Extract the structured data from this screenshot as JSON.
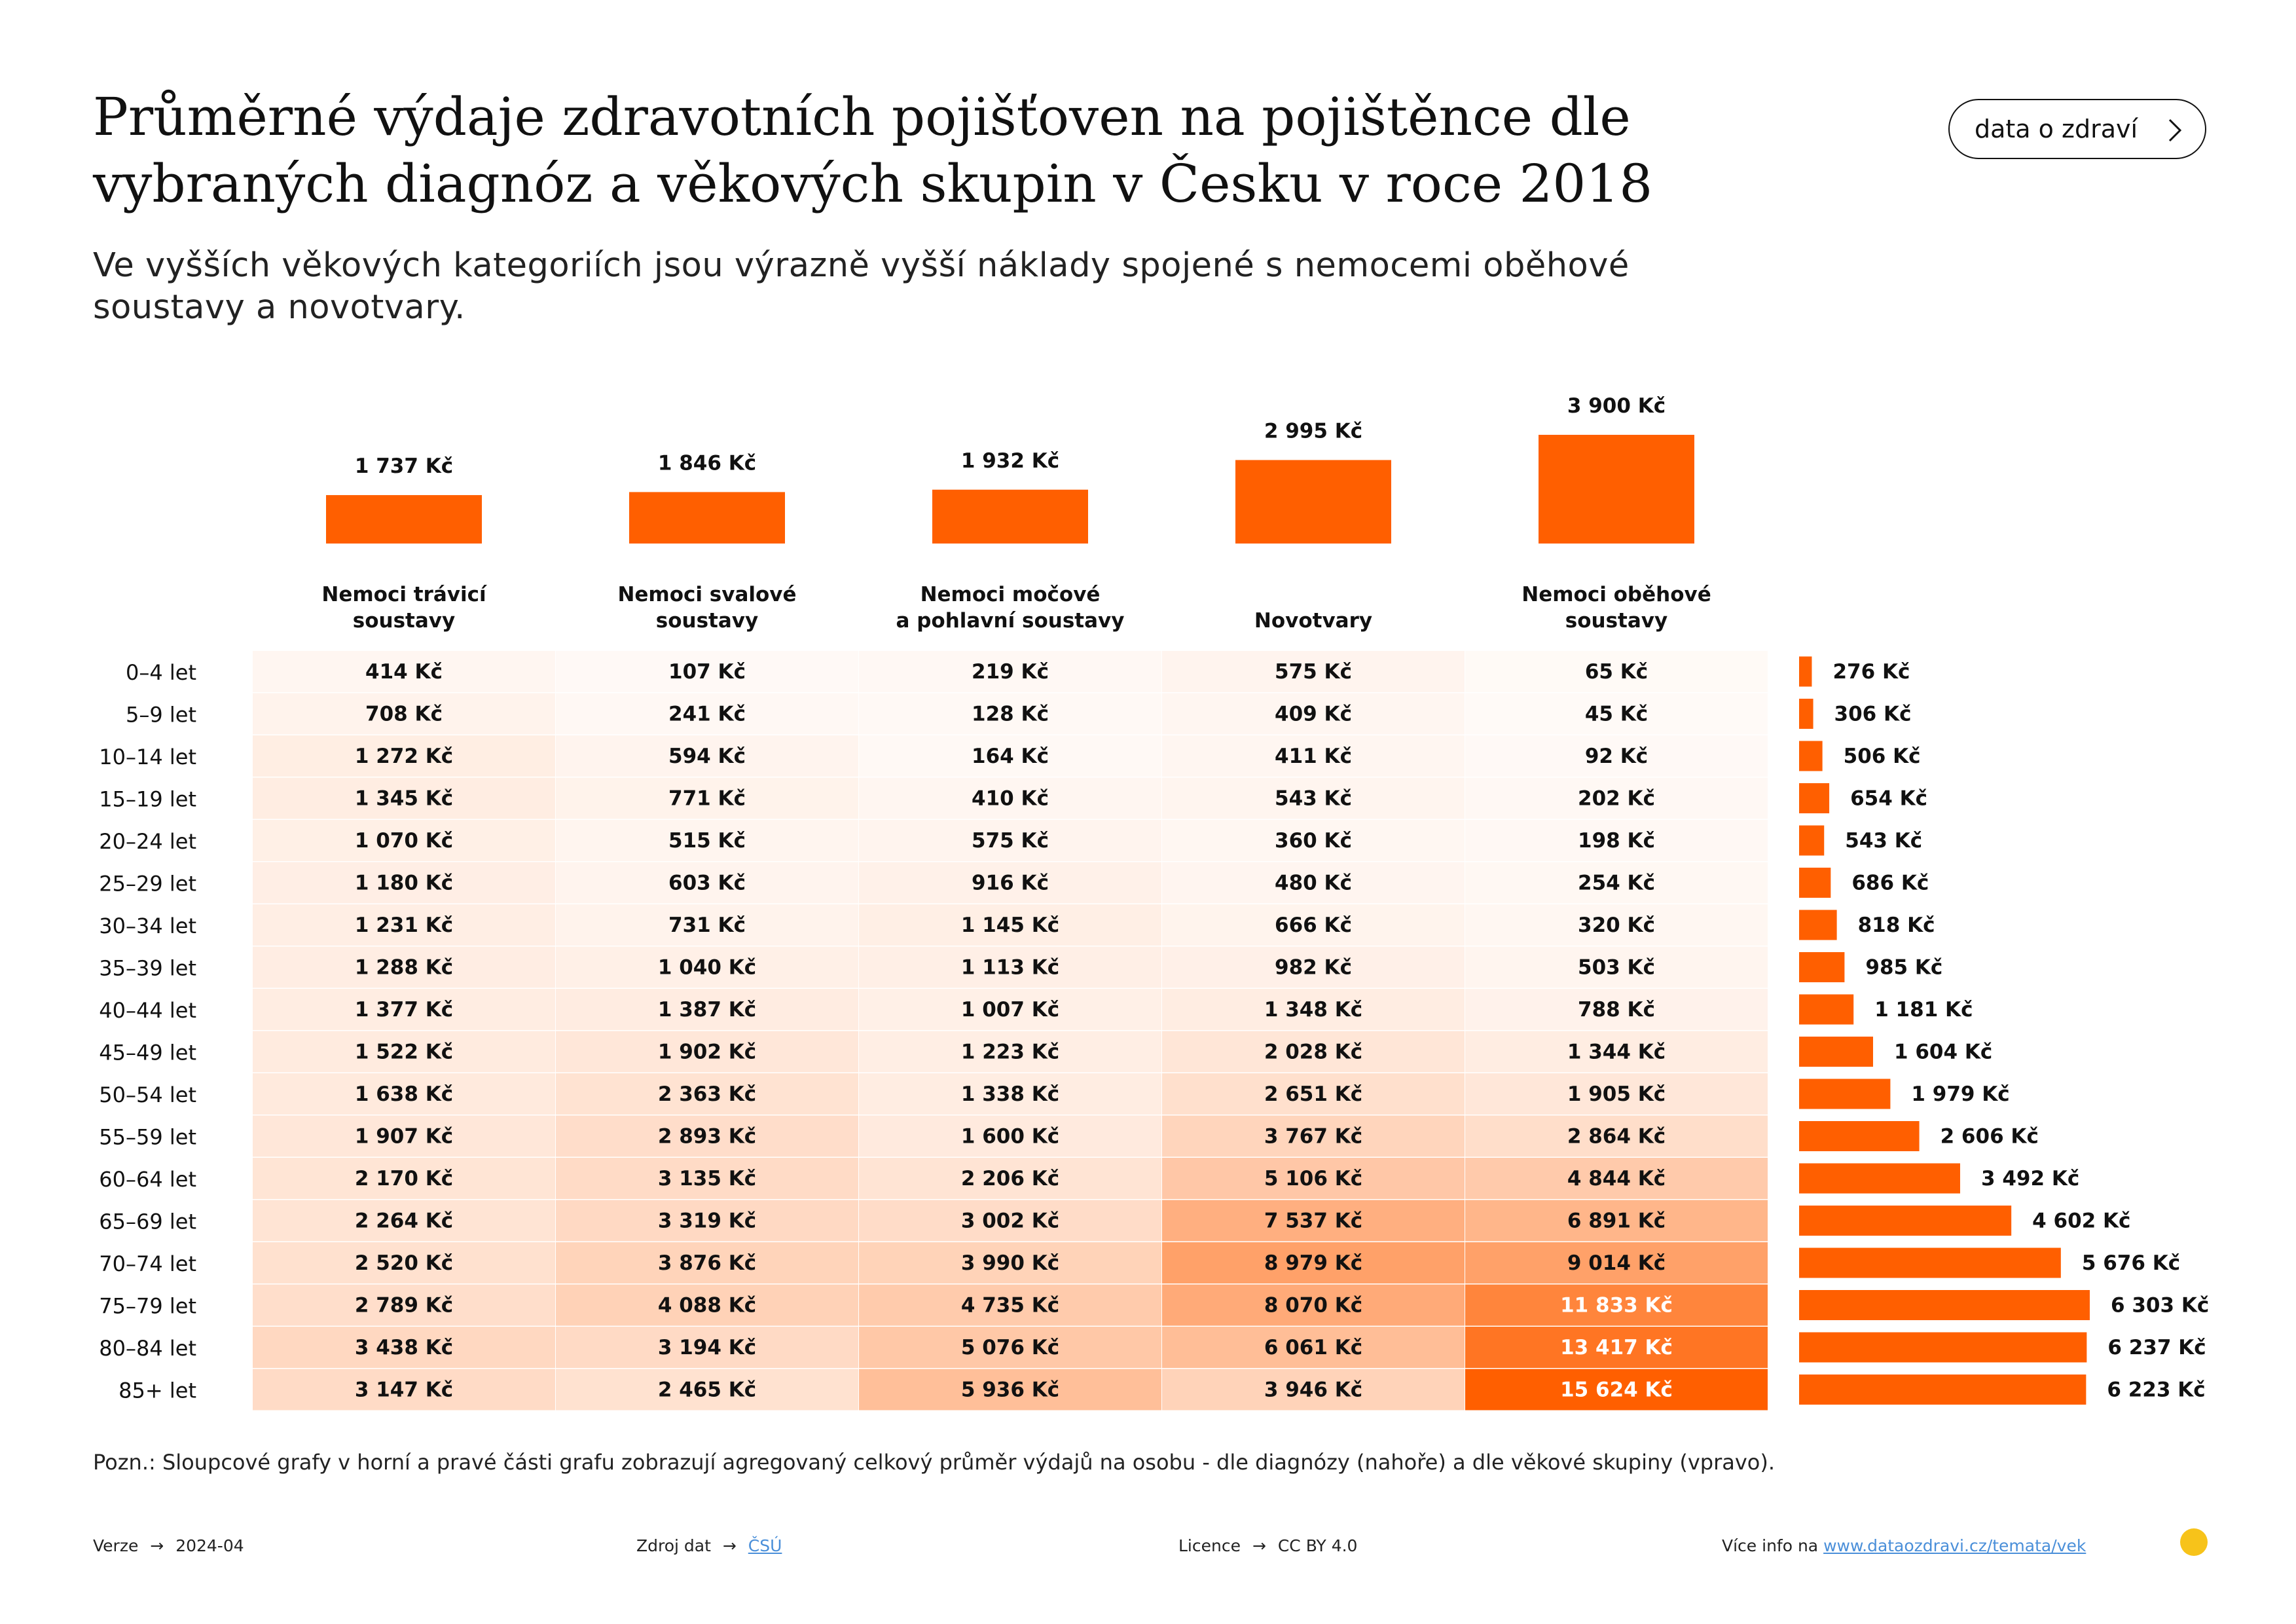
{
  "header": {
    "title_line1": "Průměrné výdaje zdravotních pojišťoven na pojištěnce dle",
    "title_line2": "vybraných diagnóz a věkových skupin v Česku v roce 2018",
    "subtitle_line1": "Ve vyšších věkových kategoriích jsou výrazně vyšší náklady spojené s nemocemi oběhové",
    "subtitle_line2": "soustavy a novotvary.",
    "brand_button": "data o zdraví"
  },
  "colors": {
    "accent": "#ff5f00",
    "heat_base": "#ffffff",
    "link": "#4a8fd9",
    "logo": "#f7c31a"
  },
  "chart_data": {
    "type": "heatmap",
    "columns": [
      {
        "label_lines": [
          "Nemoci trávicí",
          "soustavy"
        ],
        "total": 1737,
        "total_label": "1 737 Kč"
      },
      {
        "label_lines": [
          "Nemoci svalové",
          "soustavy"
        ],
        "total": 1846,
        "total_label": "1 846 Kč"
      },
      {
        "label_lines": [
          "Nemoci močové",
          "a pohlavní soustavy"
        ],
        "total": 1932,
        "total_label": "1 932 Kč"
      },
      {
        "label_lines": [
          "Novotvary"
        ],
        "total": 2995,
        "total_label": "2 995 Kč"
      },
      {
        "label_lines": [
          "Nemoci oběhové",
          "soustavy"
        ],
        "total": 3900,
        "total_label": "3 900 Kč"
      }
    ],
    "rows": [
      {
        "age": "0–4 let",
        "values": [
          414,
          107,
          219,
          575,
          65
        ],
        "labels": [
          "414 Kč",
          "107 Kč",
          "219 Kč",
          "575 Kč",
          "65 Kč"
        ],
        "total": 276,
        "total_label": "276 Kč"
      },
      {
        "age": "5–9 let",
        "values": [
          708,
          241,
          128,
          409,
          45
        ],
        "labels": [
          "708 Kč",
          "241 Kč",
          "128 Kč",
          "409 Kč",
          "45 Kč"
        ],
        "total": 306,
        "total_label": "306 Kč"
      },
      {
        "age": "10–14 let",
        "values": [
          1272,
          594,
          164,
          411,
          92
        ],
        "labels": [
          "1 272 Kč",
          "594 Kč",
          "164 Kč",
          "411 Kč",
          "92 Kč"
        ],
        "total": 506,
        "total_label": "506 Kč"
      },
      {
        "age": "15–19 let",
        "values": [
          1345,
          771,
          410,
          543,
          202
        ],
        "labels": [
          "1 345 Kč",
          "771 Kč",
          "410 Kč",
          "543 Kč",
          "202 Kč"
        ],
        "total": 654,
        "total_label": "654 Kč"
      },
      {
        "age": "20–24 let",
        "values": [
          1070,
          515,
          575,
          360,
          198
        ],
        "labels": [
          "1 070 Kč",
          "515 Kč",
          "575 Kč",
          "360 Kč",
          "198 Kč"
        ],
        "total": 543,
        "total_label": "543 Kč"
      },
      {
        "age": "25–29 let",
        "values": [
          1180,
          603,
          916,
          480,
          254
        ],
        "labels": [
          "1 180 Kč",
          "603 Kč",
          "916 Kč",
          "480 Kč",
          "254 Kč"
        ],
        "total": 686,
        "total_label": "686 Kč"
      },
      {
        "age": "30–34 let",
        "values": [
          1231,
          731,
          1145,
          666,
          320
        ],
        "labels": [
          "1 231 Kč",
          "731 Kč",
          "1 145 Kč",
          "666 Kč",
          "320 Kč"
        ],
        "total": 818,
        "total_label": "818 Kč"
      },
      {
        "age": "35–39 let",
        "values": [
          1288,
          1040,
          1113,
          982,
          503
        ],
        "labels": [
          "1 288 Kč",
          "1 040 Kč",
          "1 113 Kč",
          "982 Kč",
          "503 Kč"
        ],
        "total": 985,
        "total_label": "985 Kč"
      },
      {
        "age": "40–44 let",
        "values": [
          1377,
          1387,
          1007,
          1348,
          788
        ],
        "labels": [
          "1 377 Kč",
          "1 387 Kč",
          "1 007 Kč",
          "1 348 Kč",
          "788 Kč"
        ],
        "total": 1181,
        "total_label": "1 181 Kč"
      },
      {
        "age": "45–49 let",
        "values": [
          1522,
          1902,
          1223,
          2028,
          1344
        ],
        "labels": [
          "1 522 Kč",
          "1 902 Kč",
          "1 223 Kč",
          "2 028 Kč",
          "1 344 Kč"
        ],
        "total": 1604,
        "total_label": "1 604 Kč"
      },
      {
        "age": "50–54 let",
        "values": [
          1638,
          2363,
          1338,
          2651,
          1905
        ],
        "labels": [
          "1 638 Kč",
          "2 363 Kč",
          "1 338 Kč",
          "2 651 Kč",
          "1 905 Kč"
        ],
        "total": 1979,
        "total_label": "1 979 Kč"
      },
      {
        "age": "55–59 let",
        "values": [
          1907,
          2893,
          1600,
          3767,
          2864
        ],
        "labels": [
          "1 907 Kč",
          "2 893 Kč",
          "1 600 Kč",
          "3 767 Kč",
          "2 864 Kč"
        ],
        "total": 2606,
        "total_label": "2 606 Kč"
      },
      {
        "age": "60–64 let",
        "values": [
          2170,
          3135,
          2206,
          5106,
          4844
        ],
        "labels": [
          "2 170 Kč",
          "3 135 Kč",
          "2 206 Kč",
          "5 106 Kč",
          "4 844 Kč"
        ],
        "total": 3492,
        "total_label": "3 492 Kč"
      },
      {
        "age": "65–69 let",
        "values": [
          2264,
          3319,
          3002,
          7537,
          6891
        ],
        "labels": [
          "2 264 Kč",
          "3 319 Kč",
          "3 002 Kč",
          "7 537 Kč",
          "6 891 Kč"
        ],
        "total": 4602,
        "total_label": "4 602 Kč"
      },
      {
        "age": "70–74 let",
        "values": [
          2520,
          3876,
          3990,
          8979,
          9014
        ],
        "labels": [
          "2 520 Kč",
          "3 876 Kč",
          "3 990 Kč",
          "8 979 Kč",
          "9 014 Kč"
        ],
        "total": 5676,
        "total_label": "5 676 Kč"
      },
      {
        "age": "75–79 let",
        "values": [
          2789,
          4088,
          4735,
          8070,
          11833
        ],
        "labels": [
          "2 789 Kč",
          "4 088 Kč",
          "4 735 Kč",
          "8 070 Kč",
          "11 833 Kč"
        ],
        "total": 6303,
        "total_label": "6 303 Kč"
      },
      {
        "age": "80–84 let",
        "values": [
          3438,
          3194,
          5076,
          6061,
          13417
        ],
        "labels": [
          "3 438 Kč",
          "3 194 Kč",
          "5 076 Kč",
          "6 061 Kč",
          "13 417 Kč"
        ],
        "total": 6237,
        "total_label": "6 237 Kč"
      },
      {
        "age": "85+ let",
        "values": [
          3147,
          2465,
          5936,
          3946,
          15624
        ],
        "labels": [
          "3 147 Kč",
          "2 465 Kč",
          "5 936 Kč",
          "3 946 Kč",
          "15 624 Kč"
        ],
        "total": 6223,
        "total_label": "6 223 Kč"
      }
    ],
    "color_scale_max": 15624,
    "top_bars_max": 3900,
    "right_bars_max": 6303,
    "grid": false,
    "legend": "none"
  },
  "note": "Pozn.: Sloupcové grafy v horní a pravé části grafu zobrazují agregovaný celkový průměr výdajů na osobu - dle diagnózy (nahoře) a dle věkové skupiny (vpravo).",
  "footer": {
    "version_label": "Verze",
    "version_value": "2024-04",
    "source_label": "Zdroj dat",
    "source_value": "ČSÚ",
    "license_label": "Licence",
    "license_value": "CC BY 4.0",
    "more_label": "Více info na",
    "more_link": "www.dataozdravi.cz/temata/vek",
    "arrow": "→"
  }
}
